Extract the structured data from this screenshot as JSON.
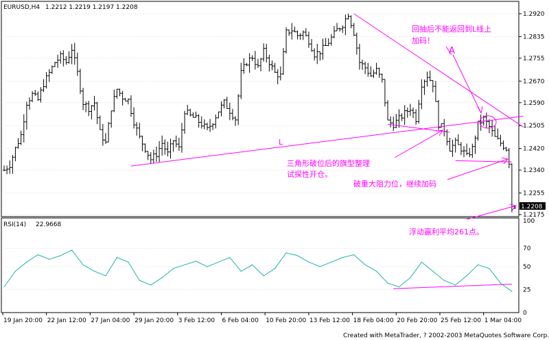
{
  "header": {
    "symbol": "EURUSD,H4",
    "ohlc": "1.2212 1.2219 1.2197 1.2208"
  },
  "current_price": "1.2208",
  "rsi": {
    "label": "RSI(14)",
    "value": "22.9668",
    "levels": [
      "100",
      "70",
      "50",
      "25",
      "0"
    ]
  },
  "footer": "Created with MetaTrader, ? 2002-2003 MetaQuotes Software Corp.",
  "annotations": {
    "no_return": "回抽后不能返回到L线上",
    "add_position_1": "加码！",
    "a_mark": "A",
    "line_l": "L",
    "flag_1": "三角形破位后的旗型整理",
    "flag_2": "试探性开仓。",
    "break_resistance": "破重大阻力位，继续加码",
    "profit": "浮动赢利平均261点。"
  },
  "colors": {
    "price": "#000000",
    "rsi": "#20b2aa",
    "annotation": "#ff00ff",
    "grid": "#c0c0c0"
  },
  "chart_data": [
    {
      "type": "ohlc",
      "title": "EURUSD,H4",
      "ylim": [
        1.2175,
        1.292
      ],
      "y_ticks": [
        "1.2920",
        "1.2835",
        "1.2755",
        "1.2670",
        "1.2590",
        "1.2505",
        "1.2420",
        "1.2340",
        "1.2255",
        "1.2175"
      ],
      "x_tick_labels": [
        "19 Jan 20:00",
        "22 Jan 12:00",
        "27 Jan 04:00",
        "29 Jan 20:00",
        "3 Feb 12:00",
        "6 Feb 04:00",
        "10 Feb 20:00",
        "13 Feb 12:00",
        "18 Feb 04:00",
        "20 Feb 20:00",
        "25 Feb 12:00",
        "1 Mar 04:00"
      ],
      "close_path": [
        [
          0,
          1.234
        ],
        [
          2,
          1.236
        ],
        [
          4,
          1.242
        ],
        [
          6,
          1.247
        ],
        [
          8,
          1.259
        ],
        [
          10,
          1.262
        ],
        [
          12,
          1.26
        ],
        [
          14,
          1.266
        ],
        [
          16,
          1.27
        ],
        [
          18,
          1.274
        ],
        [
          20,
          1.276
        ],
        [
          22,
          1.274
        ],
        [
          24,
          1.279
        ],
        [
          26,
          1.27
        ],
        [
          28,
          1.259
        ],
        [
          30,
          1.257
        ],
        [
          32,
          1.259
        ],
        [
          34,
          1.248
        ],
        [
          36,
          1.244
        ],
        [
          38,
          1.257
        ],
        [
          40,
          1.264
        ],
        [
          42,
          1.261
        ],
        [
          44,
          1.26
        ],
        [
          46,
          1.252
        ],
        [
          48,
          1.246
        ],
        [
          50,
          1.242
        ],
        [
          52,
          1.238
        ],
        [
          54,
          1.24
        ],
        [
          56,
          1.244
        ],
        [
          58,
          1.24
        ],
        [
          60,
          1.245
        ],
        [
          62,
          1.242
        ],
        [
          64,
          1.256
        ],
        [
          66,
          1.254
        ],
        [
          68,
          1.253
        ],
        [
          70,
          1.251
        ],
        [
          72,
          1.249
        ],
        [
          74,
          1.252
        ],
        [
          76,
          1.256
        ],
        [
          78,
          1.259
        ],
        [
          80,
          1.256
        ],
        [
          82,
          1.253
        ],
        [
          84,
          1.27
        ],
        [
          86,
          1.274
        ],
        [
          88,
          1.276
        ],
        [
          90,
          1.272
        ],
        [
          92,
          1.278
        ],
        [
          94,
          1.274
        ],
        [
          96,
          1.27
        ],
        [
          98,
          1.269
        ],
        [
          100,
          1.285
        ],
        [
          102,
          1.286
        ],
        [
          104,
          1.284
        ],
        [
          106,
          1.285
        ],
        [
          108,
          1.282
        ],
        [
          110,
          1.277
        ],
        [
          112,
          1.278
        ],
        [
          114,
          1.28
        ],
        [
          116,
          1.283
        ],
        [
          118,
          1.286
        ],
        [
          120,
          1.288
        ],
        [
          122,
          1.292
        ],
        [
          124,
          1.285
        ],
        [
          126,
          1.274
        ],
        [
          128,
          1.272
        ],
        [
          130,
          1.269
        ],
        [
          132,
          1.271
        ],
        [
          134,
          1.267
        ],
        [
          136,
          1.252
        ],
        [
          138,
          1.251
        ],
        [
          140,
          1.253
        ],
        [
          142,
          1.255
        ],
        [
          144,
          1.257
        ],
        [
          146,
          1.253
        ],
        [
          148,
          1.266
        ],
        [
          150,
          1.269
        ],
        [
          152,
          1.266
        ],
        [
          154,
          1.251
        ],
        [
          156,
          1.249
        ],
        [
          158,
          1.242
        ],
        [
          160,
          1.244
        ],
        [
          162,
          1.242
        ],
        [
          164,
          1.239
        ],
        [
          166,
          1.242
        ],
        [
          168,
          1.251
        ],
        [
          170,
          1.253
        ],
        [
          172,
          1.25
        ],
        [
          174,
          1.246
        ],
        [
          176,
          1.244
        ],
        [
          178,
          1.242
        ],
        [
          179,
          1.237
        ],
        [
          180,
          1.2208
        ]
      ],
      "annotation_lines": [
        {
          "name": "L-line",
          "x": [
            45,
            184
          ],
          "y": [
            1.2355,
            1.254
          ]
        },
        {
          "name": "downtrend-line",
          "x": [
            124,
            184
          ],
          "y": [
            1.292,
            1.25
          ]
        },
        {
          "name": "flag-support",
          "x": [
            160,
            180
          ],
          "y": [
            1.2375,
            1.237
          ]
        },
        {
          "name": "flag-top",
          "x": [
            136,
            158
          ],
          "y": [
            1.251,
            1.248
          ]
        }
      ]
    },
    {
      "type": "line",
      "title": "RSI(14) 22.9668",
      "ylim": [
        0,
        100
      ],
      "y_ticks": [
        "100",
        "70",
        "50",
        "25",
        "0"
      ],
      "x_tick_labels": [
        "19 Jan 20:00",
        "22 Jan 12:00",
        "27 Jan 04:00",
        "29 Jan 20:00",
        "3 Feb 12:00",
        "6 Feb 04:00",
        "10 Feb 20:00",
        "13 Feb 12:00",
        "18 Feb 04:00",
        "20 Feb 20:00",
        "25 Feb 12:00",
        "1 Mar 04:00"
      ],
      "series": [
        {
          "x": [
            0,
            4,
            8,
            12,
            16,
            20,
            24,
            28,
            32,
            36,
            40,
            44,
            48,
            52,
            56,
            60,
            64,
            68,
            72,
            76,
            80,
            84,
            88,
            92,
            96,
            100,
            104,
            108,
            112,
            116,
            120,
            124,
            128,
            132,
            136,
            140,
            144,
            148,
            152,
            156,
            160,
            164,
            168,
            172,
            176,
            180
          ],
          "y": [
            28,
            45,
            55,
            63,
            58,
            62,
            68,
            52,
            45,
            40,
            60,
            55,
            35,
            30,
            38,
            48,
            52,
            56,
            50,
            55,
            60,
            45,
            52,
            40,
            48,
            65,
            62,
            55,
            50,
            55,
            60,
            63,
            52,
            45,
            32,
            28,
            38,
            55,
            45,
            35,
            30,
            40,
            52,
            48,
            32,
            23
          ]
        }
      ],
      "annotation_lines": [
        {
          "name": "rsi-trendline",
          "x": [
            138,
            180
          ],
          "y": [
            26,
            31
          ]
        }
      ]
    }
  ]
}
